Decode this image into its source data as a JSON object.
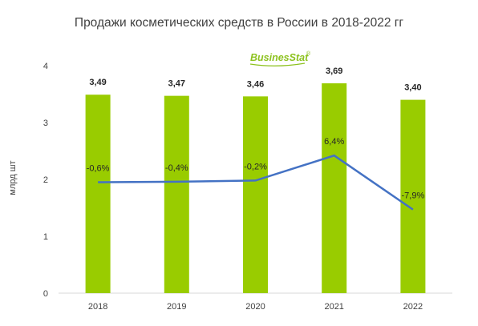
{
  "chart_data": {
    "type": "bar",
    "title": "Продажи косметических средств в России в 2018-2022 гг",
    "ylabel": "млрд шт",
    "xlabel": "",
    "ylim": [
      0,
      4
    ],
    "yticks": [
      "0",
      "1",
      "2",
      "3",
      "4"
    ],
    "categories": [
      "2018",
      "2019",
      "2020",
      "2021",
      "2022"
    ],
    "values": [
      3.49,
      3.47,
      3.46,
      3.69,
      3.4
    ],
    "value_labels": [
      "3,49",
      "3,47",
      "3,46",
      "3,69",
      "3,40"
    ],
    "line_series": {
      "values": [
        -0.6,
        -0.4,
        -0.2,
        6.4,
        -7.9
      ],
      "labels": [
        "-0,6%",
        "-0,4%",
        "-0,2%",
        "6,4%",
        "-7,9%"
      ],
      "y_on_left_axis": [
        1.95,
        1.96,
        1.98,
        2.42,
        1.47
      ]
    },
    "bar_color": "#99cc00",
    "line_color": "#4472c4",
    "grid": false
  },
  "logo": {
    "text": "BusinesStat",
    "mark": "®"
  }
}
